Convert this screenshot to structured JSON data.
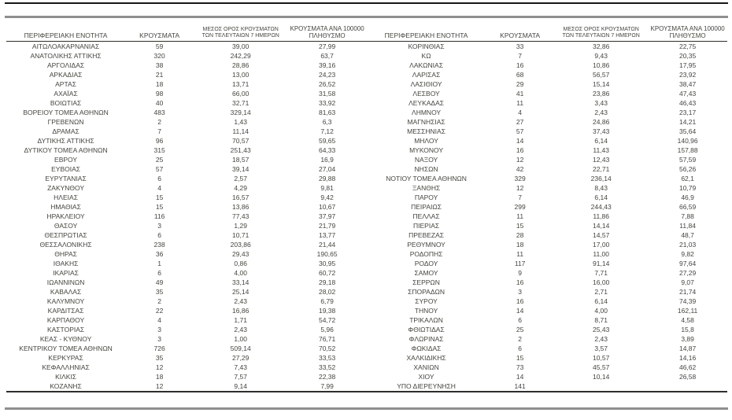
{
  "colors": {
    "text": "#45453f",
    "top_line": "#161616",
    "gray_line": "#8f8f8f",
    "header_underline": "#2e2e2a"
  },
  "table": {
    "headers": {
      "region": "ΠΕΡΙΦΕΡΕΙΑΚΗ ΕΝΟΤΗΤΑ",
      "cases": "ΚΡΟΥΣΜΑΤΑ",
      "avg7_line1": "ΜΕΣΟΣ ΟΡΟΣ ΚΡΟΥΣΜΑΤΩΝ",
      "avg7_line2": "ΤΩΝ ΤΕΛΕΥΤΑΙΩΝ 7 ΗΜΕΡΩΝ",
      "per100k_line1": "ΚΡΟΥΣΜΑΤΑ ΑΝΑ 100000",
      "per100k_line2": "ΠΛΗΘΥΣΜΟ"
    },
    "left_rows": [
      [
        "ΑΙΤΩΛΟΑΚΑΡΝΑΝΙΑΣ",
        "59",
        "39,00",
        "27,99"
      ],
      [
        "ΑΝΑΤΟΛΙΚΗΣ ΑΤΤΙΚΗΣ",
        "320",
        "242,29",
        "63,7"
      ],
      [
        "ΑΡΓΟΛΙΔΑΣ",
        "38",
        "28,86",
        "39,16"
      ],
      [
        "ΑΡΚΑΔΙΑΣ",
        "21",
        "13,00",
        "24,23"
      ],
      [
        "ΑΡΤΑΣ",
        "18",
        "13,71",
        "26,52"
      ],
      [
        "ΑΧΑΪΑΣ",
        "98",
        "66,00",
        "31,58"
      ],
      [
        "ΒΟΙΩΤΙΑΣ",
        "40",
        "32,71",
        "33,92"
      ],
      [
        "ΒΟΡΕΙΟΥ ΤΟΜΕΑ ΑΘΗΝΩΝ",
        "483",
        "329,14",
        "81,63"
      ],
      [
        "ΓΡΕΒΕΝΩΝ",
        "2",
        "1,43",
        "6,3"
      ],
      [
        "ΔΡΑΜΑΣ",
        "7",
        "11,14",
        "7,12"
      ],
      [
        "ΔΥΤΙΚΗΣ ΑΤΤΙΚΗΣ",
        "96",
        "70,57",
        "59,65"
      ],
      [
        "ΔΥΤΙΚΟΥ ΤΟΜΕΑ ΑΘΗΝΩΝ",
        "315",
        "251,43",
        "64,33"
      ],
      [
        "ΕΒΡΟΥ",
        "25",
        "18,57",
        "16,9"
      ],
      [
        "ΕΥΒΟΙΑΣ",
        "57",
        "39,14",
        "27,04"
      ],
      [
        "ΕΥΡΥΤΑΝΙΑΣ",
        "6",
        "2,57",
        "29,88"
      ],
      [
        "ΖΑΚΥΝΘΟΥ",
        "4",
        "4,29",
        "9,81"
      ],
      [
        "ΗΛΕΙΑΣ",
        "15",
        "16,57",
        "9,42"
      ],
      [
        "ΗΜΑΘΙΑΣ",
        "15",
        "13,86",
        "10,67"
      ],
      [
        "ΗΡΑΚΛΕΙΟΥ",
        "116",
        "77,43",
        "37,97"
      ],
      [
        "ΘΑΣΟΥ",
        "3",
        "1,29",
        "21,79"
      ],
      [
        "ΘΕΣΠΡΩΤΙΑΣ",
        "6",
        "10,71",
        "13,77"
      ],
      [
        "ΘΕΣΣΑΛΟΝΙΚΗΣ",
        "238",
        "203,86",
        "21,44"
      ],
      [
        "ΘΗΡΑΣ",
        "36",
        "29,43",
        "190,65"
      ],
      [
        "ΙΘΑΚΗΣ",
        "1",
        "0,86",
        "30,95"
      ],
      [
        "ΙΚΑΡΙΑΣ",
        "6",
        "4,00",
        "60,72"
      ],
      [
        "ΙΩΑΝΝΙΝΩΝ",
        "49",
        "33,14",
        "29,18"
      ],
      [
        "ΚΑΒΑΛΑΣ",
        "35",
        "25,14",
        "28,02"
      ],
      [
        "ΚΑΛΥΜΝΟΥ",
        "2",
        "2,43",
        "6,79"
      ],
      [
        "ΚΑΡΔΙΤΣΑΣ",
        "22",
        "16,86",
        "19,38"
      ],
      [
        "ΚΑΡΠΑΘΟΥ",
        "4",
        "1,71",
        "54,72"
      ],
      [
        "ΚΑΣΤΟΡΙΑΣ",
        "3",
        "2,43",
        "5,96"
      ],
      [
        "ΚΕΑΣ - ΚΥΘΝΟΥ",
        "3",
        "1,00",
        "76,71"
      ],
      [
        "ΚΕΝΤΡΙΚΟΥ ΤΟΜΕΑ ΑΘΗΝΩΝ",
        "726",
        "509,14",
        "70,52"
      ],
      [
        "ΚΕΡΚΥΡΑΣ",
        "35",
        "27,29",
        "33,53"
      ],
      [
        "ΚΕΦΑΛΛΗΝΙΑΣ",
        "12",
        "7,43",
        "33,52"
      ],
      [
        "ΚΙΛΚΙΣ",
        "18",
        "7,57",
        "22,38"
      ],
      [
        "ΚΟΖΑΝΗΣ",
        "12",
        "9,14",
        "7,99"
      ]
    ],
    "right_rows": [
      [
        "ΚΟΡΙΝΘΙΑΣ",
        "33",
        "32,86",
        "22,75"
      ],
      [
        "ΚΩ",
        "7",
        "9,43",
        "20,35"
      ],
      [
        "ΛΑΚΩΝΙΑΣ",
        "16",
        "10,86",
        "17,95"
      ],
      [
        "ΛΑΡΙΣΑΣ",
        "68",
        "56,57",
        "23,92"
      ],
      [
        "ΛΑΣΙΘΙΟΥ",
        "29",
        "15,14",
        "38,47"
      ],
      [
        "ΛΕΣΒΟΥ",
        "41",
        "23,86",
        "47,43"
      ],
      [
        "ΛΕΥΚΑΔΑΣ",
        "11",
        "3,43",
        "46,43"
      ],
      [
        "ΛΗΜΝΟΥ",
        "4",
        "2,43",
        "23,17"
      ],
      [
        "ΜΑΓΝΗΣΙΑΣ",
        "27",
        "24,86",
        "14,21"
      ],
      [
        "ΜΕΣΣΗΝΙΑΣ",
        "57",
        "37,43",
        "35,64"
      ],
      [
        "ΜΗΛΟΥ",
        "14",
        "6,14",
        "140,96"
      ],
      [
        "ΜΥΚΟΝΟΥ",
        "16",
        "11,43",
        "157,88"
      ],
      [
        "ΝΑΞΟΥ",
        "12",
        "12,43",
        "57,59"
      ],
      [
        "ΝΗΣΩΝ",
        "42",
        "22,71",
        "56,26"
      ],
      [
        "ΝΟΤΙΟΥ ΤΟΜΕΑ ΑΘΗΝΩΝ",
        "329",
        "236,14",
        "62,1"
      ],
      [
        "ΞΑΝΘΗΣ",
        "12",
        "8,43",
        "10,79"
      ],
      [
        "ΠΑΡΟΥ",
        "7",
        "6,14",
        "46,9"
      ],
      [
        "ΠΕΙΡΑΙΩΣ",
        "299",
        "244,43",
        "66,59"
      ],
      [
        "ΠΕΛΛΑΣ",
        "11",
        "11,86",
        "7,88"
      ],
      [
        "ΠΙΕΡΙΑΣ",
        "15",
        "14,14",
        "11,84"
      ],
      [
        "ΠΡΕΒΕΖΑΣ",
        "28",
        "14,57",
        "48,7"
      ],
      [
        "ΡΕΘΥΜΝΟΥ",
        "18",
        "17,00",
        "21,03"
      ],
      [
        "ΡΟΔΟΠΗΣ",
        "11",
        "11,00",
        "9,82"
      ],
      [
        "ΡΟΔΟΥ",
        "117",
        "91,14",
        "97,64"
      ],
      [
        "ΣΑΜΟΥ",
        "9",
        "7,71",
        "27,29"
      ],
      [
        "ΣΕΡΡΩΝ",
        "16",
        "16,00",
        "9,07"
      ],
      [
        "ΣΠΟΡΑΔΩΝ",
        "3",
        "2,71",
        "21,74"
      ],
      [
        "ΣΥΡΟΥ",
        "16",
        "6,14",
        "74,39"
      ],
      [
        "ΤΗΝΟΥ",
        "14",
        "4,00",
        "162,11"
      ],
      [
        "ΤΡΙΚΑΛΩΝ",
        "6",
        "8,71",
        "4,58"
      ],
      [
        "ΦΘΙΩΤΙΔΑΣ",
        "25",
        "25,43",
        "15,8"
      ],
      [
        "ΦΛΩΡΙΝΑΣ",
        "2",
        "2,43",
        "3,89"
      ],
      [
        "ΦΩΚΙΔΑΣ",
        "6",
        "3,57",
        "14,87"
      ],
      [
        "ΧΑΛΚΙΔΙΚΗΣ",
        "15",
        "10,57",
        "14,16"
      ],
      [
        "ΧΑΝΙΩΝ",
        "73",
        "45,57",
        "46,62"
      ],
      [
        "ΧΙΟΥ",
        "14",
        "10,14",
        "26,58"
      ],
      [
        "ΥΠΟ ΔΙΕΡΕΥΝΗΣΗ",
        "141",
        "",
        ""
      ]
    ]
  }
}
